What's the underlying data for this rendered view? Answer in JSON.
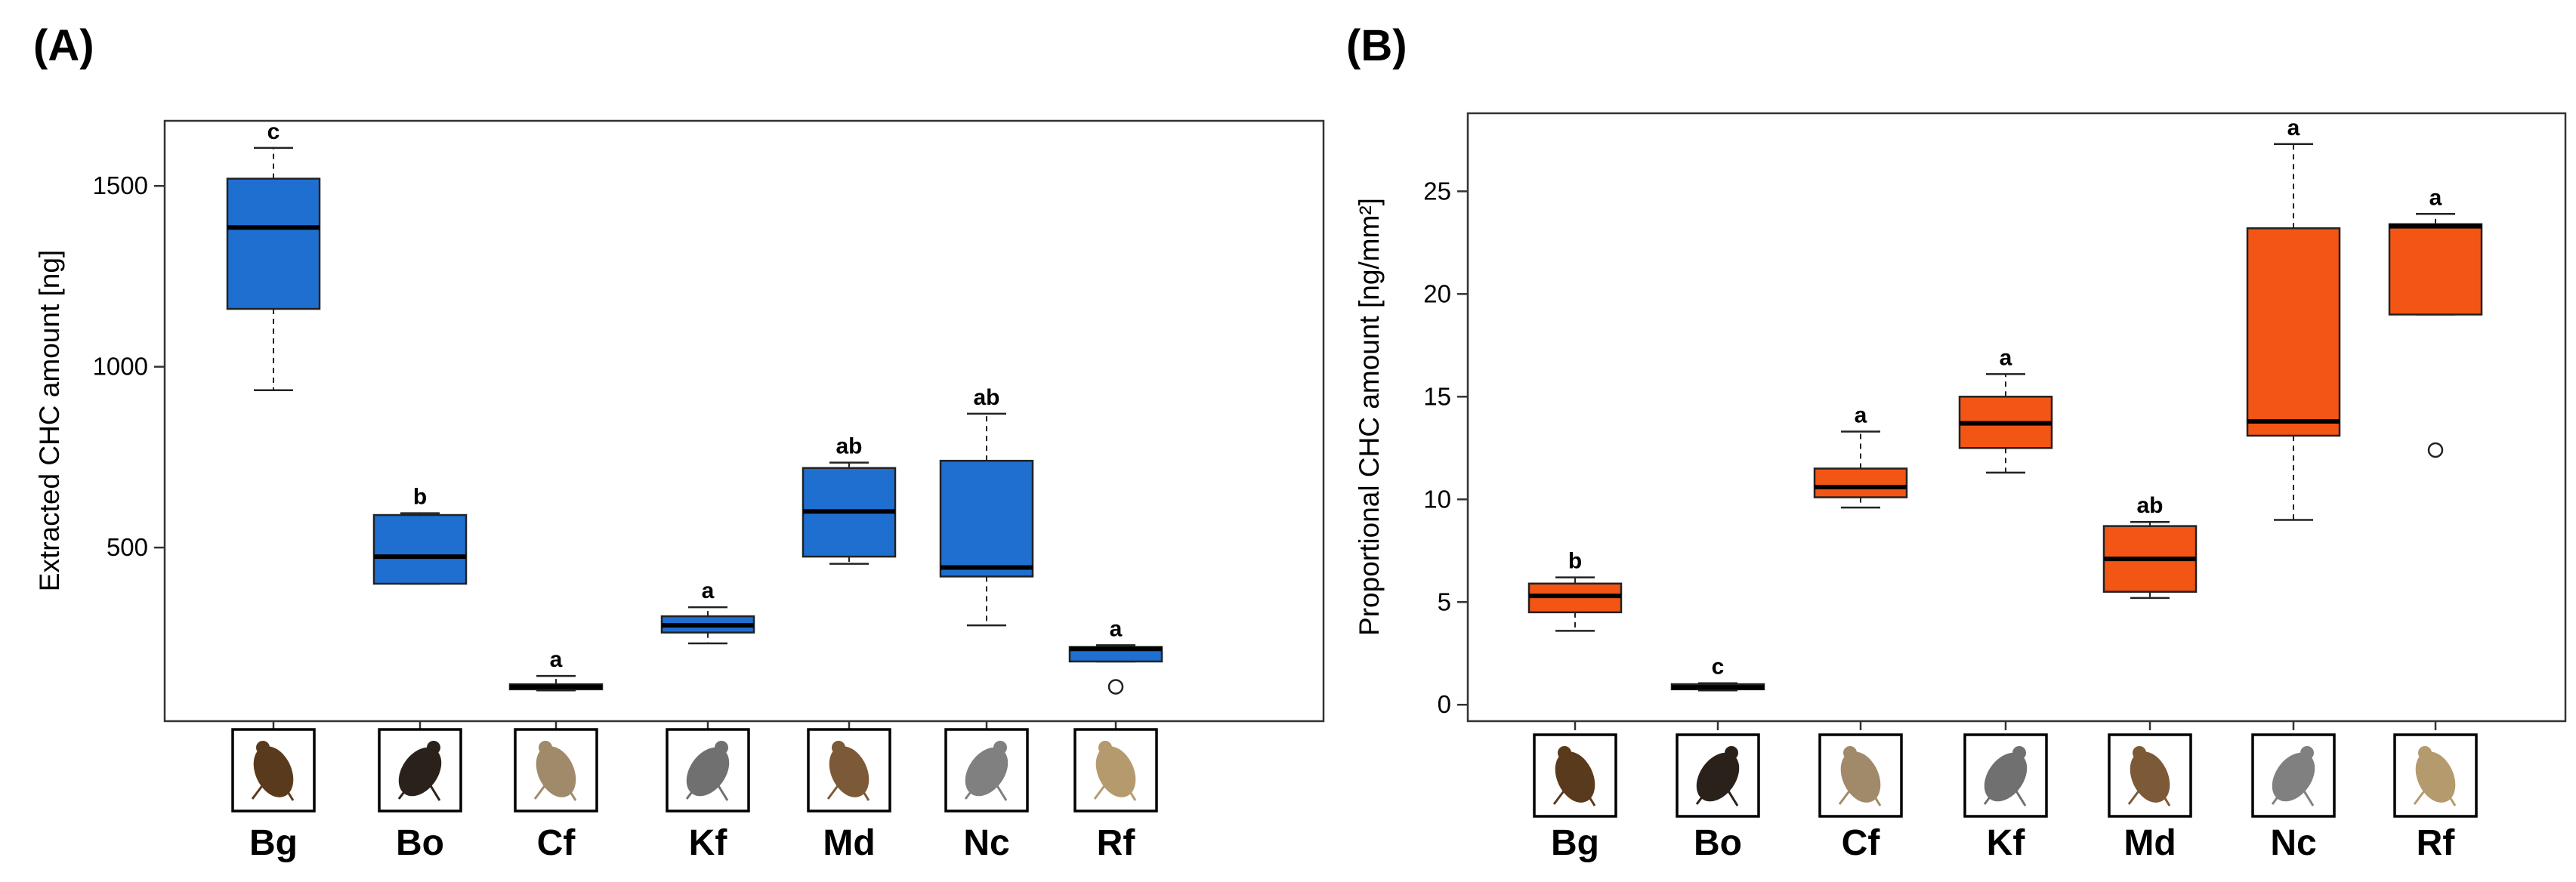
{
  "panels": [
    {
      "label": "(A)",
      "color": "#1f6fd1",
      "chart_data": {
        "type": "box",
        "title": "",
        "xlabel": "",
        "ylabel": "Extracted CHC amount [ng]",
        "ylim": [
          20,
          1680
        ],
        "yticks": [
          500,
          1000,
          1500
        ],
        "categories": [
          "Bg",
          "Bo",
          "Cf",
          "Kf",
          "Md",
          "Nc",
          "Rf"
        ],
        "boxes": [
          {
            "cat": "Bg",
            "min": 935,
            "q1": 1160,
            "median": 1385,
            "q3": 1520,
            "max": 1605,
            "outliers": [],
            "sig": "c"
          },
          {
            "cat": "Bo",
            "min": 400,
            "q1": 400,
            "median": 475,
            "q3": 590,
            "max": 595,
            "outliers": [],
            "sig": "b"
          },
          {
            "cat": "Cf",
            "min": 105,
            "q1": 108,
            "median": 115,
            "q3": 122,
            "max": 145,
            "outliers": [],
            "sig": "a"
          },
          {
            "cat": "Kf",
            "min": 235,
            "q1": 265,
            "median": 285,
            "q3": 310,
            "max": 335,
            "outliers": [],
            "sig": "a"
          },
          {
            "cat": "Md",
            "min": 455,
            "q1": 475,
            "median": 600,
            "q3": 720,
            "max": 735,
            "outliers": [],
            "sig": "ab"
          },
          {
            "cat": "Nc",
            "min": 285,
            "q1": 420,
            "median": 445,
            "q3": 740,
            "max": 870,
            "outliers": [],
            "sig": "ab"
          },
          {
            "cat": "Rf",
            "min": 185,
            "q1": 185,
            "median": 220,
            "q3": 225,
            "max": 230,
            "outliers": [
              115
            ],
            "sig": "a"
          }
        ]
      }
    },
    {
      "label": "(B)",
      "color": "#f35514",
      "chart_data": {
        "type": "box",
        "title": "",
        "xlabel": "",
        "ylabel": "Proportional CHC amount [ng/mm²]",
        "ylim": [
          -0.8,
          28.8
        ],
        "yticks": [
          0,
          5,
          10,
          15,
          20,
          25
        ],
        "categories": [
          "Bg",
          "Bo",
          "Cf",
          "Kf",
          "Md",
          "Nc",
          "Rf"
        ],
        "boxes": [
          {
            "cat": "Bg",
            "min": 3.6,
            "q1": 4.5,
            "median": 5.3,
            "q3": 5.9,
            "max": 6.2,
            "outliers": [],
            "sig": "b"
          },
          {
            "cat": "Bo",
            "min": 0.7,
            "q1": 0.75,
            "median": 0.85,
            "q3": 1.0,
            "max": 1.05,
            "outliers": [],
            "sig": "c"
          },
          {
            "cat": "Cf",
            "min": 9.6,
            "q1": 10.1,
            "median": 10.6,
            "q3": 11.5,
            "max": 13.3,
            "outliers": [],
            "sig": "a"
          },
          {
            "cat": "Kf",
            "min": 11.3,
            "q1": 12.5,
            "median": 13.7,
            "q3": 15.0,
            "max": 16.1,
            "outliers": [],
            "sig": "a"
          },
          {
            "cat": "Md",
            "min": 5.2,
            "q1": 5.5,
            "median": 7.1,
            "q3": 8.7,
            "max": 8.9,
            "outliers": [],
            "sig": "ab"
          },
          {
            "cat": "Nc",
            "min": 9.0,
            "q1": 13.1,
            "median": 13.8,
            "q3": 23.2,
            "max": 27.3,
            "outliers": [],
            "sig": "a"
          },
          {
            "cat": "Rf",
            "min": 19.0,
            "q1": 19.0,
            "median": 23.3,
            "q3": 23.4,
            "max": 23.9,
            "outliers": [
              12.4
            ],
            "sig": "a"
          }
        ]
      }
    }
  ]
}
